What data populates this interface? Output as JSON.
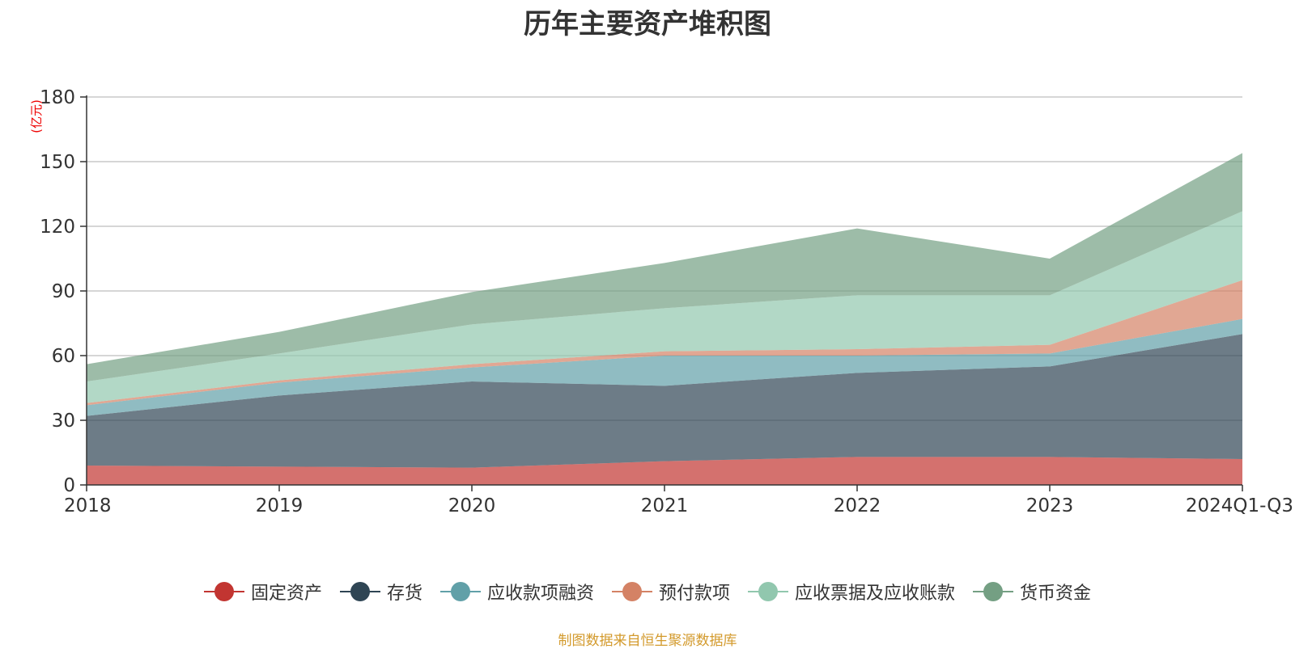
{
  "chart_data": {
    "type": "area",
    "stacked": true,
    "title": "历年主要资产堆积图",
    "unit_label": "(亿元)",
    "categories": [
      "2018",
      "2019",
      "2020",
      "2021",
      "2022",
      "2023",
      "2024Q1-Q3"
    ],
    "ylim": [
      0,
      180
    ],
    "yticks": [
      0,
      30,
      60,
      90,
      120,
      150,
      180
    ],
    "grid": true,
    "legend_position": "bottom",
    "series": [
      {
        "name": "固定资产",
        "color": "#c23531",
        "values": [
          9,
          8.5,
          8,
          11,
          13,
          13,
          12
        ]
      },
      {
        "name": "存货",
        "color": "#2f4554",
        "values": [
          23,
          33,
          40,
          35,
          39,
          42,
          58
        ]
      },
      {
        "name": "应收款项融资",
        "color": "#61a0a8",
        "values": [
          5,
          6,
          6.5,
          14,
          8,
          6,
          7
        ]
      },
      {
        "name": "预付款项",
        "color": "#d48265",
        "values": [
          1,
          1,
          1.5,
          2,
          3,
          4,
          18
        ]
      },
      {
        "name": "应收票据及应收账款",
        "color": "#91c7ae",
        "values": [
          10,
          12.5,
          18.5,
          20,
          25,
          23,
          32
        ]
      },
      {
        "name": "货币资金",
        "color": "#749f83",
        "values": [
          8,
          10,
          15,
          21,
          31,
          17,
          27
        ]
      }
    ]
  },
  "footer": {
    "source": "制图数据来自恒生聚源数据库"
  }
}
